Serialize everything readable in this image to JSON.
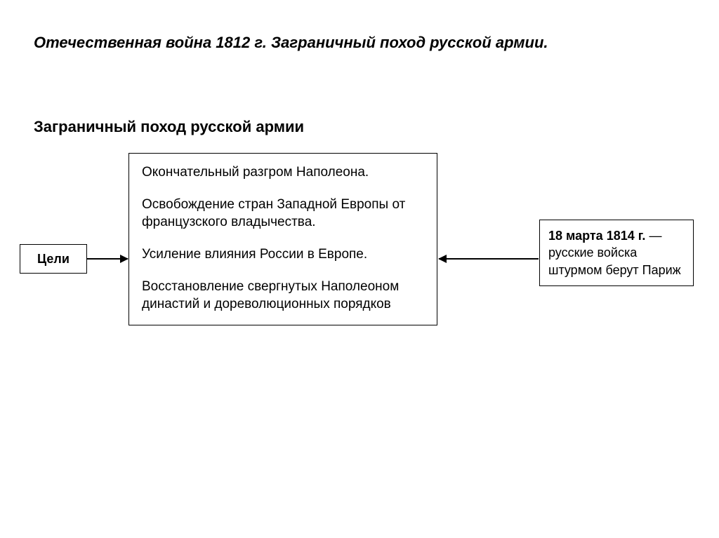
{
  "page_title": "Отечественная война 1812 г. Заграничный поход русской армии.",
  "section_title": "Заграничный поход русской армии",
  "diagram": {
    "goals_label": "Цели",
    "center_items": [
      "Окончательный разгром Наполеона.",
      "Освобождение стран Западной Европы от французского владычества.",
      "Усиление влияния России в Европе.",
      "Восстановление свергнутых Наполеоном династий и дореволюционных порядков"
    ],
    "right_box": {
      "date": "18 марта 1814 г.",
      "dash": " — ",
      "text": "русские войска штурмом берут Париж"
    }
  },
  "style": {
    "background_color": "#ffffff",
    "text_color": "#000000",
    "border_color": "#000000",
    "page_title_fontsize": 22,
    "section_title_fontsize": 22,
    "body_fontsize": 19,
    "font_family": "Arial"
  }
}
